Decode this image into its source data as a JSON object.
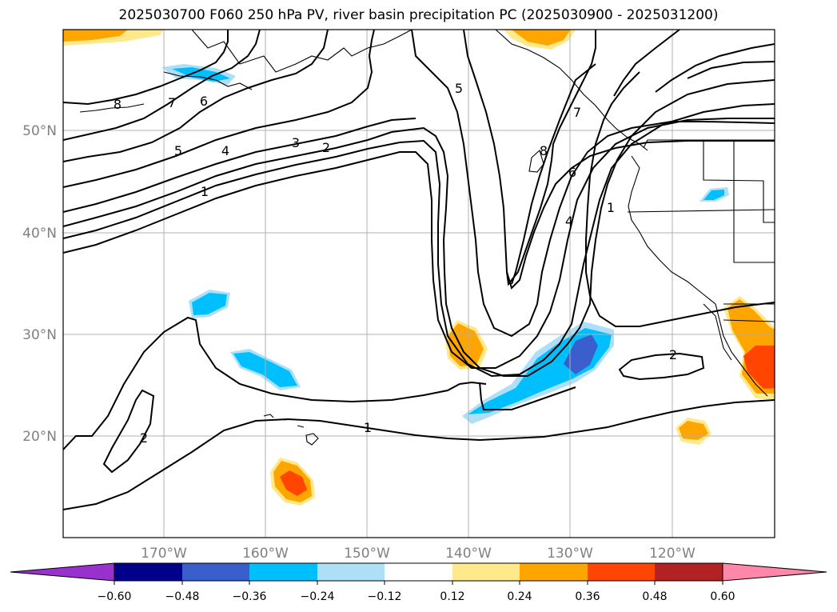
{
  "title": "2025030700 F060 250 hPa PV, river basin precipitation PC (2025030900 - 2025031200)",
  "map": {
    "lat_labels": [
      "50°N",
      "40°N",
      "30°N",
      "20°N"
    ],
    "lon_labels": [
      "170°W",
      "160°W",
      "150°W",
      "140°W",
      "130°W",
      "120°W"
    ],
    "contour_labels": [
      "8",
      "7",
      "6",
      "5",
      "4",
      "3",
      "2",
      "1",
      "5",
      "7",
      "6",
      "4",
      "1",
      "8",
      "2",
      "1",
      "2"
    ],
    "precip_colors": {
      "light_yellow": "#ffe98a",
      "orange": "#ffa500",
      "red_orange": "#ff4500",
      "light_blue": "#ade0f7",
      "blue": "#00bfff",
      "royal_blue": "#3a5fcd"
    }
  },
  "colorbar": {
    "ticks": [
      "−0.60",
      "−0.48",
      "−0.36",
      "−0.24",
      "−0.12",
      "0.12",
      "0.24",
      "0.36",
      "0.48",
      "0.60"
    ],
    "colors": [
      "#9932cc",
      "#00008b",
      "#3a5fcd",
      "#00bfff",
      "#ade0f7",
      "#ffffff",
      "#ffe98a",
      "#ffa500",
      "#ff4500",
      "#b22222",
      "#ff88aa"
    ]
  }
}
